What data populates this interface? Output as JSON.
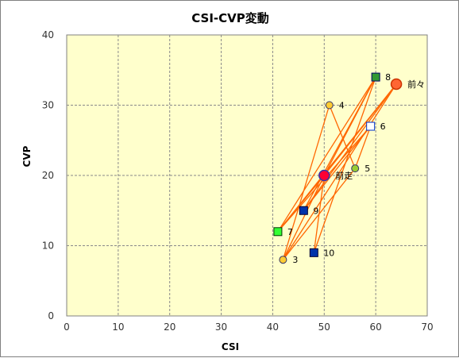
{
  "chart_data": {
    "type": "scatter",
    "title": "CSI-CVP変動",
    "xlabel": "CSI",
    "ylabel": "CVP",
    "xlim": [
      0,
      70
    ],
    "ylim": [
      0,
      40
    ],
    "xticks": [
      "0",
      "10",
      "20",
      "30",
      "40",
      "50",
      "60",
      "70"
    ],
    "yticks": [
      "0",
      "10",
      "20",
      "30",
      "40"
    ],
    "grid": true,
    "plot_background": "#ffffcc",
    "line_color": "#ff6600",
    "points": [
      {
        "label": "前々",
        "x": 64,
        "y": 33,
        "marker": "circle-large",
        "fill": "#ff6633",
        "stroke": "#cc3300"
      },
      {
        "label": "前走",
        "x": 50,
        "y": 20,
        "marker": "circle-large",
        "fill": "#ff0033",
        "stroke": "#3333aa"
      },
      {
        "label": "3",
        "x": 42,
        "y": 8,
        "marker": "circle",
        "fill": "#ffcc33",
        "stroke": "#333366"
      },
      {
        "label": "4",
        "x": 51,
        "y": 30,
        "marker": "circle",
        "fill": "#ffcc33",
        "stroke": "#333366"
      },
      {
        "label": "5",
        "x": 56,
        "y": 21,
        "marker": "circle",
        "fill": "#99cc33",
        "stroke": "#333366"
      },
      {
        "label": "6",
        "x": 59,
        "y": 27,
        "marker": "square",
        "fill": "#ffffff",
        "stroke": "#0033cc"
      },
      {
        "label": "7",
        "x": 41,
        "y": 12,
        "marker": "square",
        "fill": "#33ff33",
        "stroke": "#003300"
      },
      {
        "label": "8",
        "x": 60,
        "y": 34,
        "marker": "square",
        "fill": "#339933",
        "stroke": "#000066"
      },
      {
        "label": "9",
        "x": 46,
        "y": 15,
        "marker": "square",
        "fill": "#0033aa",
        "stroke": "#000033"
      },
      {
        "label": "10",
        "x": 48,
        "y": 9,
        "marker": "square",
        "fill": "#0033aa",
        "stroke": "#000033"
      }
    ],
    "connections": [
      [
        "7",
        "8"
      ],
      [
        "7",
        "前々"
      ],
      [
        "7",
        "6"
      ],
      [
        "7",
        "前走"
      ],
      [
        "3",
        "4"
      ],
      [
        "3",
        "前走"
      ],
      [
        "3",
        "5"
      ],
      [
        "3",
        "前々"
      ],
      [
        "9",
        "8"
      ],
      [
        "9",
        "前々"
      ],
      [
        "9",
        "6"
      ],
      [
        "10",
        "8"
      ],
      [
        "10",
        "前走"
      ],
      [
        "4",
        "5"
      ],
      [
        "5",
        "6"
      ],
      [
        "前走",
        "8"
      ],
      [
        "前走",
        "前々"
      ]
    ]
  }
}
